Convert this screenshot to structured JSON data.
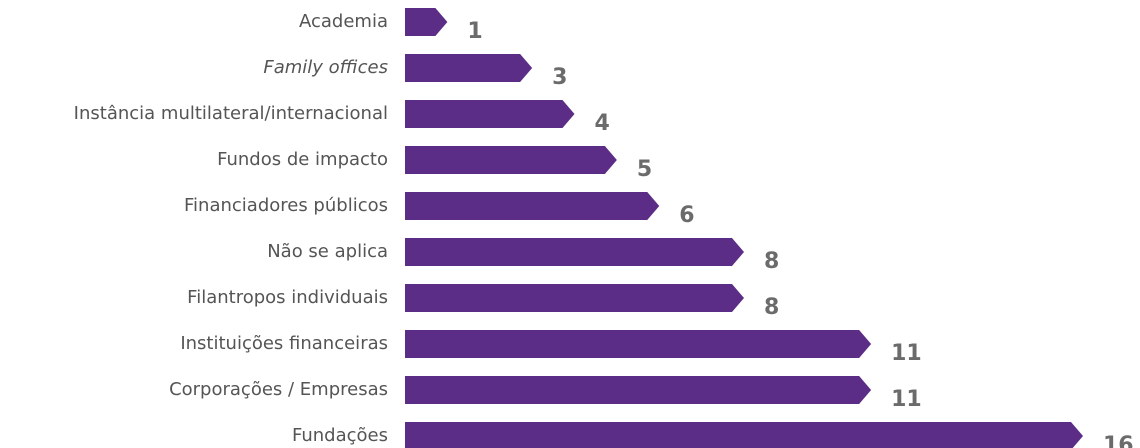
{
  "chart_data": {
    "type": "bar",
    "orientation": "horizontal",
    "categories": [
      "Academia",
      "Family offices",
      "Instância multilateral/internacional",
      "Fundos de impacto",
      "Financiadores públicos",
      "Não se aplica",
      "Filantropos individuais",
      "Instituições financeiras",
      "Corporações / Empresas",
      "Fundações"
    ],
    "values": [
      1,
      3,
      4,
      5,
      6,
      8,
      8,
      11,
      11,
      16
    ],
    "italic_categories": [
      1
    ],
    "color": "#5b2d86"
  }
}
